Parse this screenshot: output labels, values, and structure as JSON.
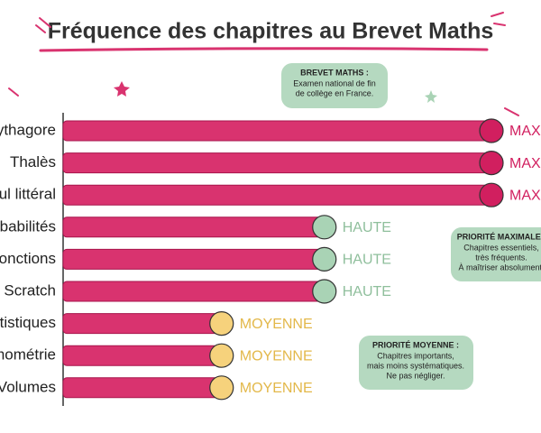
{
  "chart_data": {
    "type": "bar",
    "orientation": "horizontal",
    "title": "Fréquence des chapitres au Brevet Maths",
    "categories": [
      "Pythagore",
      "Thalès",
      "Calcul littéral",
      "Probabilités",
      "Fonctions",
      "Scratch",
      "Statistiques",
      "Trigonométrie",
      "Volumes"
    ],
    "values": [
      100,
      100,
      100,
      61,
      61,
      61,
      37,
      37,
      37
    ],
    "value_labels": [
      "MAXIMALE",
      "MAXIMALE",
      "MAXIMALE",
      "HAUTE",
      "HAUTE",
      "HAUTE",
      "MOYENNE",
      "MOYENNE",
      "MOYENNE"
    ],
    "bar_colors": [
      "#d9336f",
      "#d9336f",
      "#d9336f",
      "#d9336f",
      "#d9336f",
      "#d9336f",
      "#d9336f",
      "#d9336f",
      "#d9336f"
    ],
    "end_colors": [
      "#d11f5f",
      "#d11f5f",
      "#d11f5f",
      "#a9d3b5",
      "#a9d3b5",
      "#a9d3b5",
      "#f6d27c",
      "#f6d27c",
      "#f6d27c"
    ],
    "label_colors": [
      "#d11f5f",
      "#d11f5f",
      "#d11f5f",
      "#8fbf9c",
      "#8fbf9c",
      "#8fbf9c",
      "#e3b84a",
      "#e3b84a",
      "#e3b84a"
    ],
    "annotations": [
      {
        "title": "BREVET MATHS :",
        "lines": [
          "Examen national de fin",
          "de collège en France."
        ]
      },
      {
        "title": "PRIORITÉ MAXIMALE :",
        "lines": [
          "Chapitres essentiels,",
          "très fréquents.",
          "À maîtriser absolument."
        ]
      },
      {
        "title": "PRIORITÉ MOYENNE :",
        "lines": [
          "Chapitres importants,",
          "mais moins systématiques.",
          "Ne pas négliger."
        ]
      }
    ]
  }
}
